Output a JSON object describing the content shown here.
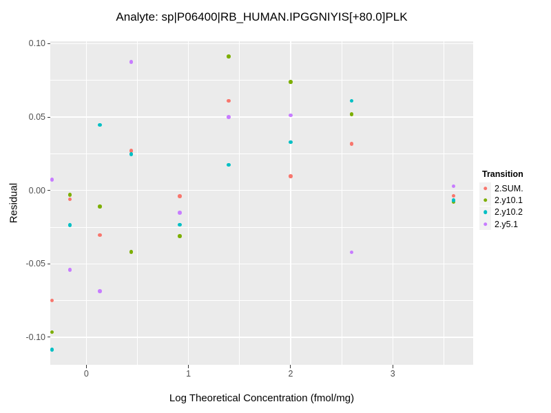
{
  "chart_data": {
    "type": "scatter",
    "title": "Analyte: sp|P06400|RB_HUMAN.IPGGNIYIS[+80.0]PLK",
    "xlabel": "Log Theoretical Concentration (fmol/mg)",
    "ylabel": "Residual",
    "legend_title": "Transition",
    "legend_position": "right",
    "grid": true,
    "xlim": [
      -0.353,
      3.787
    ],
    "ylim": [
      -0.1188,
      0.1016
    ],
    "x_ticks": [
      {
        "v": 0,
        "label": "0"
      },
      {
        "v": 1,
        "label": "1"
      },
      {
        "v": 2,
        "label": "2"
      },
      {
        "v": 3,
        "label": "3"
      }
    ],
    "y_ticks": [
      {
        "v": 0.1,
        "label": "0.10"
      },
      {
        "v": 0.05,
        "label": "0.05"
      },
      {
        "v": 0.0,
        "label": "0.00"
      },
      {
        "v": -0.05,
        "label": "-0.05"
      },
      {
        "v": -0.1,
        "label": "-0.10"
      }
    ],
    "x_minor": [
      0.5,
      1.5,
      2.5,
      3.5
    ],
    "y_minor": [
      -0.075,
      -0.025,
      0.025,
      0.075
    ],
    "series": [
      {
        "name": "2.SUM.",
        "color": "#F8766D",
        "points": [
          [
            -0.337,
            -0.075
          ],
          [
            -0.16,
            -0.006
          ],
          [
            0.133,
            -0.0305
          ],
          [
            0.44,
            0.027
          ],
          [
            0.915,
            -0.004
          ],
          [
            1.393,
            0.061
          ],
          [
            2.0,
            0.0096
          ],
          [
            2.597,
            0.0317
          ],
          [
            3.594,
            -0.0037
          ]
        ]
      },
      {
        "name": "2.y10.1",
        "color": "#7CAE00",
        "points": [
          [
            -0.337,
            -0.0966
          ],
          [
            -0.16,
            -0.003
          ],
          [
            0.133,
            -0.011
          ],
          [
            0.44,
            -0.042
          ],
          [
            0.915,
            -0.0312
          ],
          [
            1.393,
            0.0914
          ],
          [
            2.0,
            0.074
          ],
          [
            2.597,
            0.0519
          ],
          [
            3.594,
            -0.008
          ]
        ]
      },
      {
        "name": "2.y10.2",
        "color": "#00BFC4",
        "points": [
          [
            -0.337,
            -0.1086
          ],
          [
            -0.16,
            -0.0237
          ],
          [
            0.133,
            0.0447
          ],
          [
            0.44,
            0.0248
          ],
          [
            0.915,
            -0.0234
          ],
          [
            1.393,
            0.0175
          ],
          [
            2.0,
            0.0328
          ],
          [
            2.597,
            0.061
          ],
          [
            3.594,
            -0.0067
          ]
        ]
      },
      {
        "name": "2.y5.1",
        "color": "#C77CFF",
        "points": [
          [
            -0.337,
            0.0074
          ],
          [
            -0.16,
            -0.0542
          ],
          [
            0.133,
            -0.0687
          ],
          [
            0.44,
            0.0875
          ],
          [
            0.915,
            -0.0151
          ],
          [
            1.393,
            0.05
          ],
          [
            2.0,
            0.0511
          ],
          [
            2.597,
            -0.0422
          ],
          [
            3.594,
            0.003
          ]
        ]
      }
    ]
  },
  "colors": {
    "background": "#FFFFFF",
    "panel_bg": "#EBEBEB",
    "grid": "#FFFFFF",
    "tick": "#333333",
    "tick_label": "#4D4D4D",
    "text": "#000000",
    "legend_key_bg": "#F2F2F2"
  }
}
